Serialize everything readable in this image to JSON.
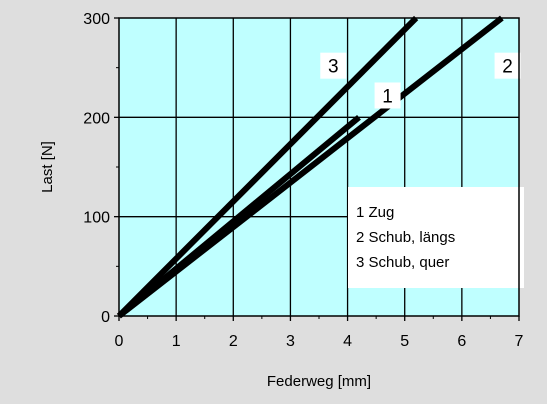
{
  "chart_data": {
    "type": "line",
    "title": "",
    "xlabel": "Federweg [mm]",
    "ylabel": "Last [N]",
    "xlim": [
      0,
      7
    ],
    "ylim": [
      0,
      300
    ],
    "xticks": [
      0,
      1,
      2,
      3,
      4,
      5,
      6,
      7
    ],
    "yticks": [
      0,
      100,
      200,
      300
    ],
    "grid": true,
    "plot_background": "#bfffff",
    "figure_background": "#dedede",
    "series": [
      {
        "id": "1",
        "x": [
          0,
          4.2
        ],
        "y": [
          0,
          200
        ],
        "color": "#000000"
      },
      {
        "id": "2",
        "x": [
          0,
          6.7
        ],
        "y": [
          0,
          300
        ],
        "color": "#000000"
      },
      {
        "id": "3",
        "x": [
          0,
          5.2
        ],
        "y": [
          0,
          300
        ],
        "color": "#000000"
      }
    ],
    "series_labels": [
      {
        "text": "3",
        "x": 3.75,
        "y": 252
      },
      {
        "text": "1",
        "x": 4.7,
        "y": 222
      },
      {
        "text": "2",
        "x": 6.8,
        "y": 252
      }
    ],
    "legend": {
      "placement": "center-right",
      "entries": [
        "1 Zug",
        "2 Schub, längs",
        "3 Schub, quer"
      ]
    }
  }
}
